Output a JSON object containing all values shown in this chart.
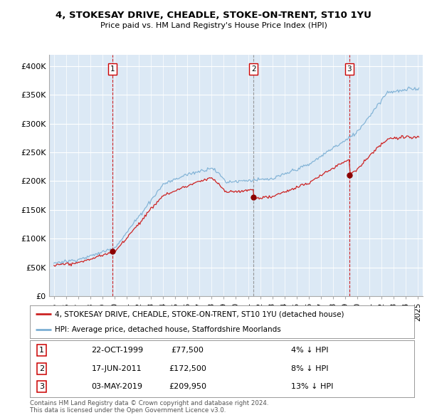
{
  "title": "4, STOKESAY DRIVE, CHEADLE, STOKE-ON-TRENT, ST10 1YU",
  "subtitle": "Price paid vs. HM Land Registry's House Price Index (HPI)",
  "ylim": [
    0,
    420000
  ],
  "yticks": [
    0,
    50000,
    100000,
    150000,
    200000,
    250000,
    300000,
    350000,
    400000
  ],
  "ytick_labels": [
    "£0",
    "£50K",
    "£100K",
    "£150K",
    "£200K",
    "£250K",
    "£300K",
    "£350K",
    "£400K"
  ],
  "sale_dates": [
    1999.81,
    2011.46,
    2019.34
  ],
  "sale_prices": [
    77500,
    172500,
    209950
  ],
  "sale_labels": [
    "1",
    "2",
    "3"
  ],
  "vline_colors": [
    "#cc0000",
    "#888888",
    "#cc0000"
  ],
  "vline_styles": [
    "--",
    "--",
    "--"
  ],
  "dot_color": "#8b0000",
  "hpi_color": "#7bafd4",
  "sold_color": "#cc2222",
  "legend_line1": "4, STOKESAY DRIVE, CHEADLE, STOKE-ON-TRENT, ST10 1YU (detached house)",
  "legend_line2": "HPI: Average price, detached house, Staffordshire Moorlands",
  "table_data": [
    [
      "1",
      "22-OCT-1999",
      "£77,500",
      "4% ↓ HPI"
    ],
    [
      "2",
      "17-JUN-2011",
      "£172,500",
      "8% ↓ HPI"
    ],
    [
      "3",
      "03-MAY-2019",
      "£209,950",
      "13% ↓ HPI"
    ]
  ],
  "footnote": "Contains HM Land Registry data © Crown copyright and database right 2024.\nThis data is licensed under the Open Government Licence v3.0.",
  "bg_color": "#ffffff",
  "plot_bg_color": "#dce9f5",
  "grid_color": "#ffffff",
  "xlim_start": 1994.6,
  "xlim_end": 2025.4
}
